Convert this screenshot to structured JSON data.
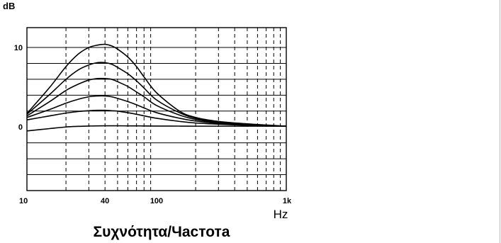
{
  "chart_data": {
    "type": "line",
    "y_unit_label": "dB",
    "x_unit_label": "Hz",
    "xlabel": "Συχνότητα/Частота",
    "x_scale": "log",
    "xlim": [
      10,
      1000
    ],
    "ylim": [
      -8,
      12.5
    ],
    "x_ticks": [
      {
        "value": 10,
        "label": "10"
      },
      {
        "value": 40,
        "label": "40"
      },
      {
        "value": 100,
        "label": "100"
      },
      {
        "value": 1000,
        "label": "1k"
      }
    ],
    "y_ticks": [
      {
        "value": 10,
        "label": "10"
      },
      {
        "value": 0,
        "label": "0"
      }
    ],
    "h_gridlines": [
      -6,
      -4,
      -2,
      2,
      4,
      6,
      8,
      10
    ],
    "v_gridlines": [
      20,
      30,
      40,
      50,
      60,
      70,
      80,
      90,
      200,
      300,
      400,
      500,
      600,
      700,
      800,
      900
    ],
    "series": [
      {
        "x": [
          10,
          15,
          20,
          25,
          30,
          35,
          40,
          45,
          50,
          60,
          70,
          80,
          100,
          150,
          200,
          300,
          500,
          700,
          1000
        ],
        "values": [
          1.7,
          5.0,
          7.6,
          9.2,
          10.0,
          10.3,
          10.4,
          10.2,
          9.8,
          8.8,
          7.6,
          6.3,
          4.3,
          2.0,
          1.2,
          0.7,
          0.4,
          0.25,
          0.1
        ]
      },
      {
        "x": [
          10,
          15,
          20,
          25,
          30,
          35,
          40,
          45,
          50,
          60,
          70,
          80,
          100,
          150,
          200,
          300,
          500,
          700,
          1000
        ],
        "values": [
          1.6,
          4.1,
          6.0,
          7.2,
          7.8,
          8.1,
          8.1,
          7.9,
          7.5,
          6.7,
          5.8,
          4.9,
          3.4,
          1.8,
          1.1,
          0.65,
          0.35,
          0.2,
          0.1
        ]
      },
      {
        "x": [
          10,
          15,
          20,
          25,
          30,
          35,
          40,
          45,
          50,
          60,
          70,
          80,
          100,
          150,
          200,
          300,
          500,
          700,
          1000
        ],
        "values": [
          1.4,
          3.2,
          4.6,
          5.4,
          5.9,
          6.1,
          6.1,
          6.0,
          5.7,
          5.1,
          4.4,
          3.8,
          2.7,
          1.5,
          0.95,
          0.55,
          0.3,
          0.18,
          0.1
        ]
      },
      {
        "x": [
          10,
          15,
          20,
          25,
          30,
          35,
          40,
          45,
          50,
          60,
          70,
          80,
          100,
          150,
          200,
          300,
          500,
          700,
          1000
        ],
        "values": [
          1.2,
          2.2,
          3.0,
          3.5,
          3.8,
          3.9,
          3.9,
          3.8,
          3.6,
          3.2,
          2.8,
          2.4,
          1.8,
          1.1,
          0.75,
          0.45,
          0.25,
          0.15,
          0.1
        ]
      },
      {
        "x": [
          10,
          15,
          20,
          25,
          30,
          35,
          40,
          45,
          50,
          60,
          70,
          80,
          100,
          150,
          200,
          300,
          500,
          700,
          1000
        ],
        "values": [
          0.9,
          1.4,
          1.75,
          1.95,
          2.05,
          2.1,
          2.1,
          2.05,
          2.0,
          1.8,
          1.6,
          1.4,
          1.1,
          0.7,
          0.5,
          0.35,
          0.2,
          0.12,
          0.1
        ]
      },
      {
        "x": [
          10,
          15,
          20,
          25,
          30,
          35,
          40,
          45,
          50,
          60,
          70,
          80,
          100,
          150,
          200,
          300,
          500,
          700,
          1000
        ],
        "values": [
          -0.5,
          -0.2,
          0.0,
          0.08,
          0.12,
          0.14,
          0.15,
          0.15,
          0.15,
          0.14,
          0.14,
          0.13,
          0.12,
          0.11,
          0.1,
          0.1,
          0.1,
          0.1,
          0.1
        ]
      }
    ]
  }
}
